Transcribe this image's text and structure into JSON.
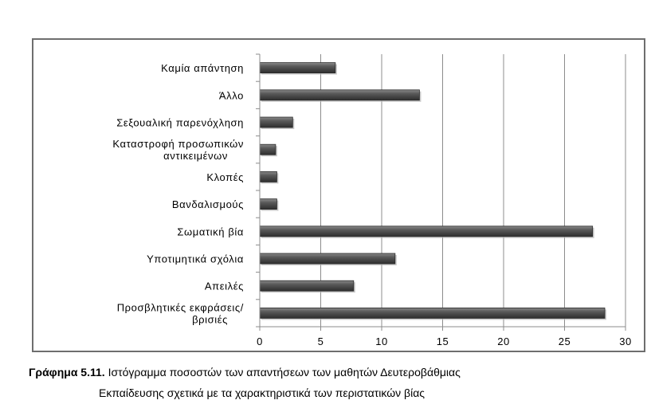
{
  "chart_data": {
    "type": "bar",
    "orientation": "horizontal",
    "categories": [
      "Καμία απάντηση",
      "Άλλο",
      "Σεξουαλική παρενόχληση",
      "Καταστροφή προσωπικών αντικειμένων",
      "Κλοπές",
      "Βανδαλισμούς",
      "Σωματική βία",
      "Υποτιμητικά σχόλια",
      "Απειλές",
      "Προσβλητικές εκφράσεις/ βρισιές"
    ],
    "category_lines": [
      [
        "Καμία απάντηση"
      ],
      [
        "Άλλο"
      ],
      [
        "Σεξουαλική παρενόχληση"
      ],
      [
        "Καταστροφή προσωπικών",
        "αντικειμένων"
      ],
      [
        "Κλοπές"
      ],
      [
        "Βανδαλισμούς"
      ],
      [
        "Σωματική βία"
      ],
      [
        "Υποτιμητικά σχόλια"
      ],
      [
        "Απειλές"
      ],
      [
        "Προσβλητικές εκφράσεις/",
        "βρισιές"
      ]
    ],
    "values": [
      6.2,
      13.1,
      2.7,
      1.3,
      1.4,
      1.4,
      27.3,
      11.1,
      7.7,
      28.3
    ],
    "xlim": [
      0,
      30
    ],
    "xticks": [
      "0",
      "5",
      "10",
      "15",
      "20",
      "25",
      "30"
    ],
    "grid": true,
    "legend": "none",
    "bar_color": "#4d4d4d",
    "title": "",
    "xlabel": "",
    "ylabel": ""
  },
  "caption": {
    "label": "Γράφημα 5.11.",
    "line1": "Ιστόγραμμα ποσοστών των απαντήσεων των μαθητών Δευτεροβάθμιας",
    "line2": "Εκπαίδευσης σχετικά με τα χαρακτηριστικά των περιστατικών βίας"
  }
}
